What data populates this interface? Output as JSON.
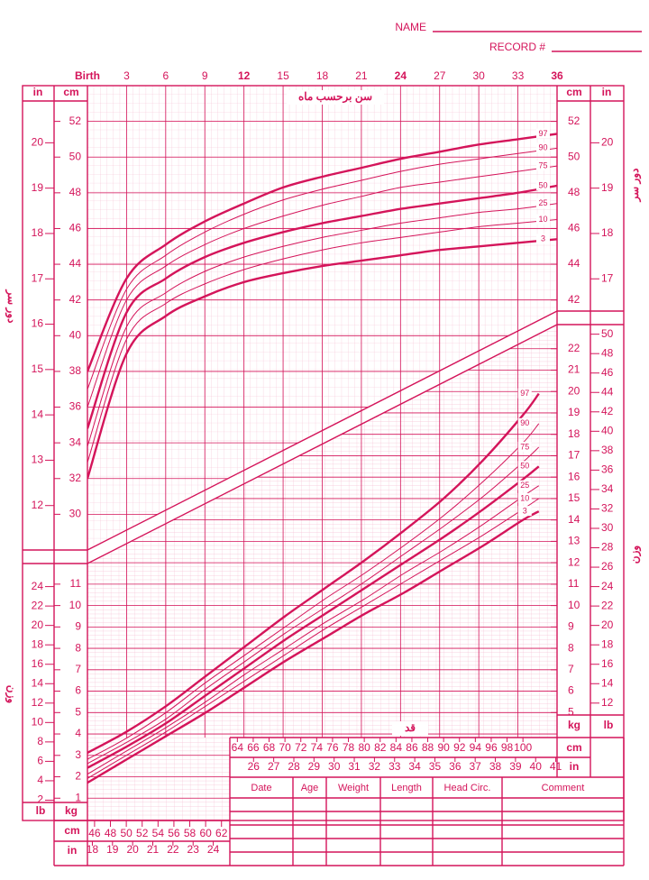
{
  "header": {
    "name": "NAME",
    "record": "RECORD #"
  },
  "chart_data": [
    {
      "type": "line",
      "title": "سن برحسب ماه",
      "y_label": "دور سر",
      "x": [
        0,
        3,
        6,
        9,
        12,
        15,
        18,
        21,
        24,
        27,
        30,
        33,
        36
      ],
      "xlim": [
        0,
        36
      ],
      "xticks": [
        {
          "value": 0,
          "label": "Birth"
        },
        3,
        6,
        9,
        12,
        15,
        18,
        21,
        24,
        27,
        30,
        33,
        36
      ],
      "ylim": [
        28,
        54
      ],
      "yticks": [
        30,
        32,
        34,
        36,
        38,
        40,
        42,
        44,
        46,
        48,
        50,
        52
      ],
      "y_unit": "cm",
      "y2lim": [
        11.02,
        21.26
      ],
      "y2ticks": [
        12,
        13,
        14,
        15,
        16,
        17,
        18,
        19,
        20
      ],
      "y2_unit": "in",
      "grid": true,
      "color": "#d4145a",
      "series": [
        {
          "name": "97",
          "line_width": 2.4,
          "values": [
            38.0,
            43.2,
            45.1,
            46.4,
            47.4,
            48.3,
            48.9,
            49.4,
            49.9,
            50.3,
            50.7,
            51.0,
            51.3
          ]
        },
        {
          "name": "90",
          "line_width": 1,
          "values": [
            37.0,
            42.6,
            44.5,
            45.8,
            46.8,
            47.6,
            48.2,
            48.7,
            49.2,
            49.6,
            49.9,
            50.2,
            50.5
          ]
        },
        {
          "name": "75",
          "line_width": 1,
          "values": [
            36.0,
            42.0,
            43.9,
            45.1,
            46.0,
            46.7,
            47.3,
            47.8,
            48.3,
            48.6,
            48.9,
            49.2,
            49.5
          ]
        },
        {
          "name": "50",
          "line_width": 2.4,
          "values": [
            34.8,
            41.3,
            43.2,
            44.4,
            45.2,
            45.8,
            46.3,
            46.7,
            47.1,
            47.4,
            47.7,
            48.0,
            48.4
          ]
        },
        {
          "name": "25",
          "line_width": 1,
          "values": [
            33.8,
            40.5,
            42.4,
            43.6,
            44.4,
            45.0,
            45.5,
            45.9,
            46.3,
            46.6,
            46.9,
            47.1,
            47.4
          ]
        },
        {
          "name": "10",
          "line_width": 1,
          "values": [
            32.9,
            39.8,
            41.8,
            42.9,
            43.7,
            44.3,
            44.8,
            45.2,
            45.5,
            45.8,
            46.1,
            46.3,
            46.5
          ]
        },
        {
          "name": "3",
          "line_width": 2.4,
          "values": [
            32.0,
            39.0,
            41.1,
            42.2,
            43.0,
            43.5,
            43.9,
            44.2,
            44.5,
            44.8,
            45.0,
            45.2,
            45.4
          ]
        }
      ]
    },
    {
      "type": "line",
      "x_label": "قد",
      "y_label": "وزن",
      "x": [
        45,
        50,
        55,
        60,
        65,
        70,
        75,
        80,
        85,
        90,
        95,
        100,
        102
      ],
      "xlim": [
        45.1,
        104.3
      ],
      "xticks": [
        46,
        48,
        50,
        52,
        54,
        56,
        58,
        60,
        62,
        64,
        66,
        68,
        70,
        72,
        74,
        76,
        78,
        80,
        82,
        84,
        86,
        88,
        90,
        92,
        94,
        96,
        98,
        100
      ],
      "x_unit": "cm",
      "x2ticks": [
        18,
        19,
        20,
        21,
        22,
        23,
        24,
        26,
        27,
        28,
        29,
        30,
        31,
        32,
        33,
        34,
        35,
        36,
        37,
        38,
        39,
        40,
        41
      ],
      "x2_unit": "in",
      "ylim": [
        0,
        23
      ],
      "yticks": [
        1,
        2,
        3,
        4,
        5,
        6,
        7,
        8,
        9,
        10,
        11,
        12,
        13,
        14,
        15,
        16,
        17,
        18,
        19,
        20,
        21,
        22
      ],
      "y_unit": "kg",
      "y2lim": [
        0,
        50.71
      ],
      "y2ticks": [
        2,
        4,
        6,
        8,
        10,
        12,
        14,
        16,
        18,
        20,
        22,
        24,
        26,
        28,
        30,
        32,
        34,
        36,
        38,
        40,
        42,
        44,
        46,
        48,
        50
      ],
      "y2_unit": "lb",
      "grid": true,
      "color": "#d4145a",
      "series": [
        {
          "name": "97",
          "line_width": 2.4,
          "values": [
            3.1,
            4.1,
            5.3,
            6.7,
            8.1,
            9.5,
            10.8,
            12.1,
            13.5,
            15.0,
            16.8,
            18.9,
            19.9
          ]
        },
        {
          "name": "90",
          "line_width": 1,
          "values": [
            2.8,
            3.8,
            5.0,
            6.4,
            7.7,
            9.0,
            10.3,
            11.5,
            12.8,
            14.2,
            15.8,
            17.6,
            18.5
          ]
        },
        {
          "name": "75",
          "line_width": 1,
          "values": [
            2.6,
            3.6,
            4.7,
            6.1,
            7.4,
            8.7,
            9.9,
            11.1,
            12.4,
            13.7,
            15.1,
            16.7,
            17.4
          ]
        },
        {
          "name": "50",
          "line_width": 2.4,
          "values": [
            2.4,
            3.4,
            4.5,
            5.8,
            7.1,
            8.4,
            9.6,
            10.8,
            12.0,
            13.2,
            14.5,
            15.9,
            16.5
          ]
        },
        {
          "name": "25",
          "line_width": 1,
          "values": [
            2.1,
            3.2,
            4.3,
            5.5,
            6.8,
            8.0,
            9.2,
            10.3,
            11.5,
            12.6,
            13.8,
            15.1,
            15.6
          ]
        },
        {
          "name": "10",
          "line_width": 1,
          "values": [
            1.9,
            3.0,
            4.1,
            5.3,
            6.5,
            7.7,
            8.9,
            10.0,
            11.1,
            12.2,
            13.3,
            14.5,
            15.0
          ]
        },
        {
          "name": "3",
          "line_width": 2.4,
          "values": [
            1.7,
            2.8,
            3.9,
            5.0,
            6.2,
            7.4,
            8.5,
            9.6,
            10.6,
            11.7,
            12.8,
            14.0,
            14.4
          ]
        }
      ]
    }
  ],
  "table": {
    "columns": [
      "Date",
      "Age",
      "Weight",
      "Length",
      "Head Circ.",
      "Comment"
    ]
  }
}
